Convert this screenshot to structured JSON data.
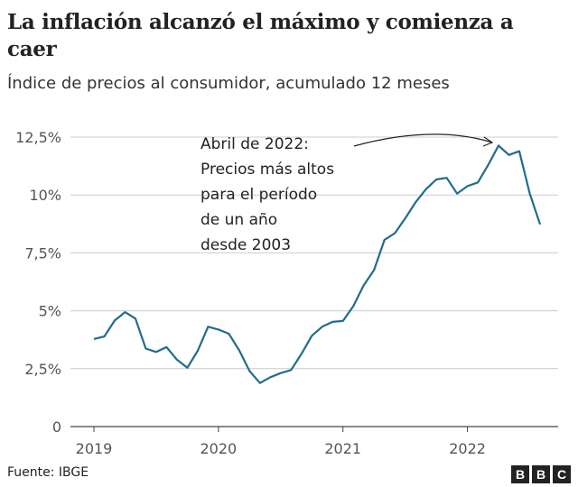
{
  "title": "La inflación alcanzó el máximo y comienza a caer",
  "subtitle": "Índice de precios al consumidor, acumulado 12 meses",
  "annotation": "Abril de 2022:\nPrecios más altos\npara el período\nde un año\ndesde 2003",
  "source": "Fuente: IBGE",
  "logo": "BBC",
  "chart_data": {
    "type": "line",
    "title": "La inflación alcanzó el máximo y comienza a caer",
    "subtitle": "Índice de precios al consumidor, acumulado 12 meses",
    "color": "#1f6d8c",
    "grid": true,
    "ylim": [
      0,
      12.5
    ],
    "y_ticks": [
      0,
      2.5,
      5,
      7.5,
      10,
      12.5
    ],
    "y_tick_labels": [
      "0",
      "2,5%",
      "5%",
      "7,5%",
      "10%",
      "12,5%"
    ],
    "x_tick_labels": [
      "2019",
      "2020",
      "2021",
      "2022"
    ],
    "x_start": "2019-01",
    "x_end": "2022-08",
    "frequency": "monthly",
    "values": [
      3.78,
      3.89,
      4.58,
      4.94,
      4.66,
      3.37,
      3.22,
      3.43,
      2.89,
      2.54,
      3.27,
      4.31,
      4.19,
      4.01,
      3.3,
      2.4,
      1.88,
      2.13,
      2.31,
      2.44,
      3.14,
      3.92,
      4.31,
      4.52,
      4.56,
      5.2,
      6.1,
      6.76,
      8.06,
      8.35,
      8.99,
      9.68,
      10.25,
      10.67,
      10.74,
      10.06,
      10.38,
      10.54,
      11.3,
      12.13,
      11.73,
      11.89,
      10.07,
      8.73
    ]
  }
}
